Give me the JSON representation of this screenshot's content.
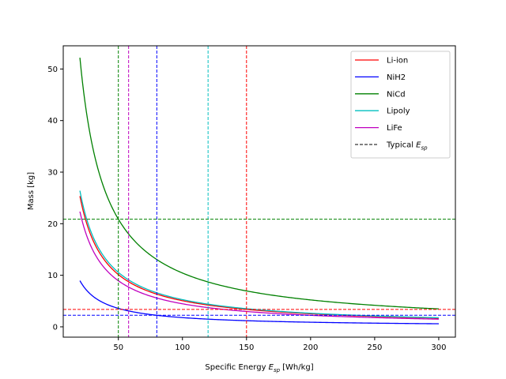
{
  "chart_data": {
    "type": "line",
    "xlabel": "Specific Energy",
    "xlabel_sub": "sp",
    "xlabel_unit": "[Wh/kg]",
    "ylabel": "Mass [kg]",
    "xlim": [
      7,
      313
    ],
    "ylim": [
      -2,
      54.5
    ],
    "xticks": [
      50,
      100,
      150,
      200,
      250,
      300
    ],
    "yticks": [
      0,
      10,
      20,
      30,
      40,
      50
    ],
    "x_range": [
      20,
      300
    ],
    "legend_position": "upper right",
    "series": [
      {
        "name": "Li-ion",
        "color": "#ff0000",
        "mass_times_esp": 507,
        "x": [
          20,
          25,
          30,
          40,
          50,
          75,
          100,
          150,
          200,
          250,
          300
        ],
        "y": [
          25.35,
          20.28,
          16.9,
          12.68,
          10.14,
          6.76,
          5.07,
          3.38,
          2.54,
          2.03,
          1.69
        ]
      },
      {
        "name": "NiH2",
        "color": "#0000ff",
        "mass_times_esp": 179,
        "x": [
          20,
          25,
          30,
          40,
          50,
          75,
          100,
          150,
          200,
          250,
          300
        ],
        "y": [
          8.95,
          7.16,
          5.97,
          4.48,
          3.58,
          2.39,
          1.79,
          1.19,
          0.9,
          0.72,
          0.6
        ]
      },
      {
        "name": "NiCd",
        "color": "#008000",
        "mass_times_esp": 1044,
        "x": [
          20,
          25,
          30,
          40,
          50,
          75,
          100,
          150,
          200,
          250,
          300
        ],
        "y": [
          52.2,
          41.76,
          34.8,
          26.1,
          20.88,
          13.92,
          10.44,
          6.96,
          5.22,
          4.18,
          3.48
        ]
      },
      {
        "name": "Lipoly",
        "color": "#00bfbf",
        "mass_times_esp": 528,
        "x": [
          20,
          25,
          30,
          40,
          50,
          75,
          100,
          150,
          200,
          250,
          300
        ],
        "y": [
          26.4,
          21.12,
          17.6,
          13.2,
          10.56,
          7.04,
          5.28,
          3.52,
          2.64,
          2.11,
          1.76
        ]
      },
      {
        "name": "LiFe",
        "color": "#bf00bf",
        "mass_times_esp": 447,
        "x": [
          20,
          25,
          30,
          40,
          50,
          75,
          100,
          150,
          200,
          250,
          300
        ],
        "y": [
          22.35,
          17.88,
          14.9,
          11.18,
          8.94,
          5.96,
          4.47,
          2.98,
          2.24,
          1.79,
          1.49
        ]
      }
    ],
    "typical": {
      "legend_label": "Typical",
      "legend_sub": "sp",
      "vlines": [
        {
          "x": 150,
          "color": "#ff0000"
        },
        {
          "x": 80,
          "color": "#0000ff"
        },
        {
          "x": 50,
          "color": "#008000"
        },
        {
          "x": 120,
          "color": "#00bfbf"
        },
        {
          "x": 58,
          "color": "#bf00bf"
        }
      ],
      "hlines": [
        {
          "y": 20.88,
          "color": "#008000"
        },
        {
          "y": 3.38,
          "color": "#ff0000"
        },
        {
          "y": 2.24,
          "color": "#0000ff"
        }
      ]
    }
  }
}
